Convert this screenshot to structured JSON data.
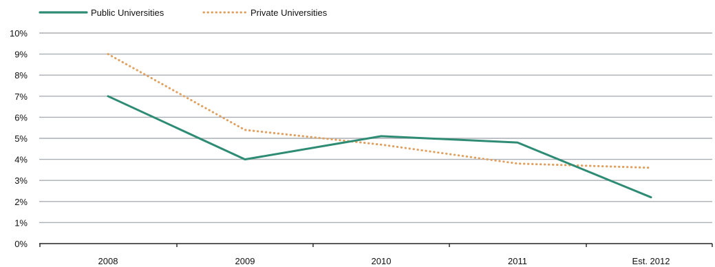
{
  "chart_data": {
    "type": "line",
    "title": "",
    "xlabel": "",
    "ylabel": "",
    "categories": [
      "2008",
      "2009",
      "2010",
      "2011",
      "Est. 2012"
    ],
    "ylim": [
      0,
      10
    ],
    "yticks": [
      "0%",
      "1%",
      "2%",
      "3%",
      "4%",
      "5%",
      "6%",
      "7%",
      "8%",
      "9%",
      "10%"
    ],
    "grid": true,
    "legend_position": "top-left",
    "series": [
      {
        "name": "Public Universities",
        "values": [
          7.0,
          4.0,
          5.1,
          4.8,
          2.2
        ],
        "color": "#2e8b74",
        "style": "solid"
      },
      {
        "name": "Private Universities",
        "values": [
          9.0,
          5.4,
          4.7,
          3.8,
          3.6
        ],
        "color": "#e0a060",
        "style": "dotted"
      }
    ]
  }
}
